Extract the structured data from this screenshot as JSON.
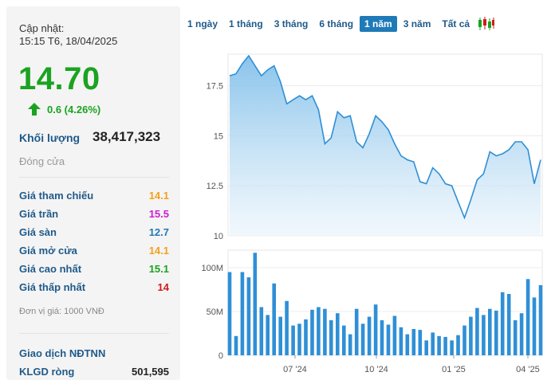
{
  "info": {
    "updated_label": "Cập nhật:",
    "updated_time": "15:15 T6, 18/04/2025",
    "price": "14.70",
    "change": "0.6 (4.26%)",
    "volume_label": "Khối lượng",
    "volume_value": "38,417,323",
    "status": "Đóng cửa",
    "rows": [
      {
        "label": "Giá tham chiếu",
        "value": "14.1",
        "color": "#f5a01a"
      },
      {
        "label": "Giá trần",
        "value": "15.5",
        "color": "#d21ad2"
      },
      {
        "label": "Giá sàn",
        "value": "12.7",
        "color": "#1f7ab8"
      },
      {
        "label": "Giá mở cửa",
        "value": "14.1",
        "color": "#f5a01a"
      },
      {
        "label": "Giá cao nhất",
        "value": "15.1",
        "color": "#1aa321"
      },
      {
        "label": "Giá thấp nhất",
        "value": "14",
        "color": "#d21a1a"
      }
    ],
    "unit_note": "Đơn vị giá: 1000 VNĐ",
    "foreign_title": "Giao dịch NĐTNN",
    "net_label": "KLGD ròng",
    "net_value": "501,595"
  },
  "tabs": {
    "items": [
      "1 ngày",
      "1 tháng",
      "3 tháng",
      "6 tháng",
      "1 năm",
      "3 năm",
      "Tất cả"
    ],
    "active": "1 năm",
    "candle_icon": "candlestick-icon"
  },
  "colors": {
    "up": "#1aa321",
    "line": "#2f8fd6",
    "area_top": "#7cbde9",
    "area_bottom": "#e8f3fb",
    "bar": "#2f8fd6"
  },
  "chart_data": [
    {
      "type": "area",
      "ylim": [
        10,
        19
      ],
      "yticks": [
        "10",
        "12.5",
        "15",
        "17.5"
      ],
      "values": [
        18.0,
        18.1,
        18.6,
        19.0,
        18.5,
        18.0,
        18.3,
        18.5,
        17.7,
        16.6,
        16.8,
        17.0,
        16.8,
        17.0,
        16.3,
        14.6,
        14.9,
        16.2,
        15.9,
        16.0,
        14.7,
        14.4,
        15.1,
        16.0,
        15.7,
        15.3,
        14.6,
        14.0,
        13.8,
        13.7,
        12.7,
        12.6,
        13.4,
        13.1,
        12.6,
        12.5,
        11.7,
        10.9,
        11.8,
        12.8,
        13.1,
        14.2,
        14.0,
        14.1,
        14.3,
        14.7,
        14.7,
        14.3,
        12.6,
        13.8
      ]
    },
    {
      "type": "bar",
      "ylim": [
        0,
        120
      ],
      "yticks": [
        "0",
        "50M",
        "100M"
      ],
      "xticks": [
        "07 '24",
        "10 '24",
        "01 '25",
        "04 '25"
      ],
      "values": [
        95,
        22,
        95,
        89,
        117,
        55,
        46,
        82,
        44,
        62,
        34,
        36,
        41,
        52,
        55,
        53,
        40,
        48,
        34,
        24,
        53,
        36,
        44,
        58,
        40,
        35,
        45,
        32,
        24,
        30,
        29,
        17,
        26,
        22,
        21,
        17,
        23,
        34,
        44,
        54,
        46,
        53,
        51,
        72,
        70,
        40,
        48,
        87,
        66,
        80
      ]
    }
  ]
}
